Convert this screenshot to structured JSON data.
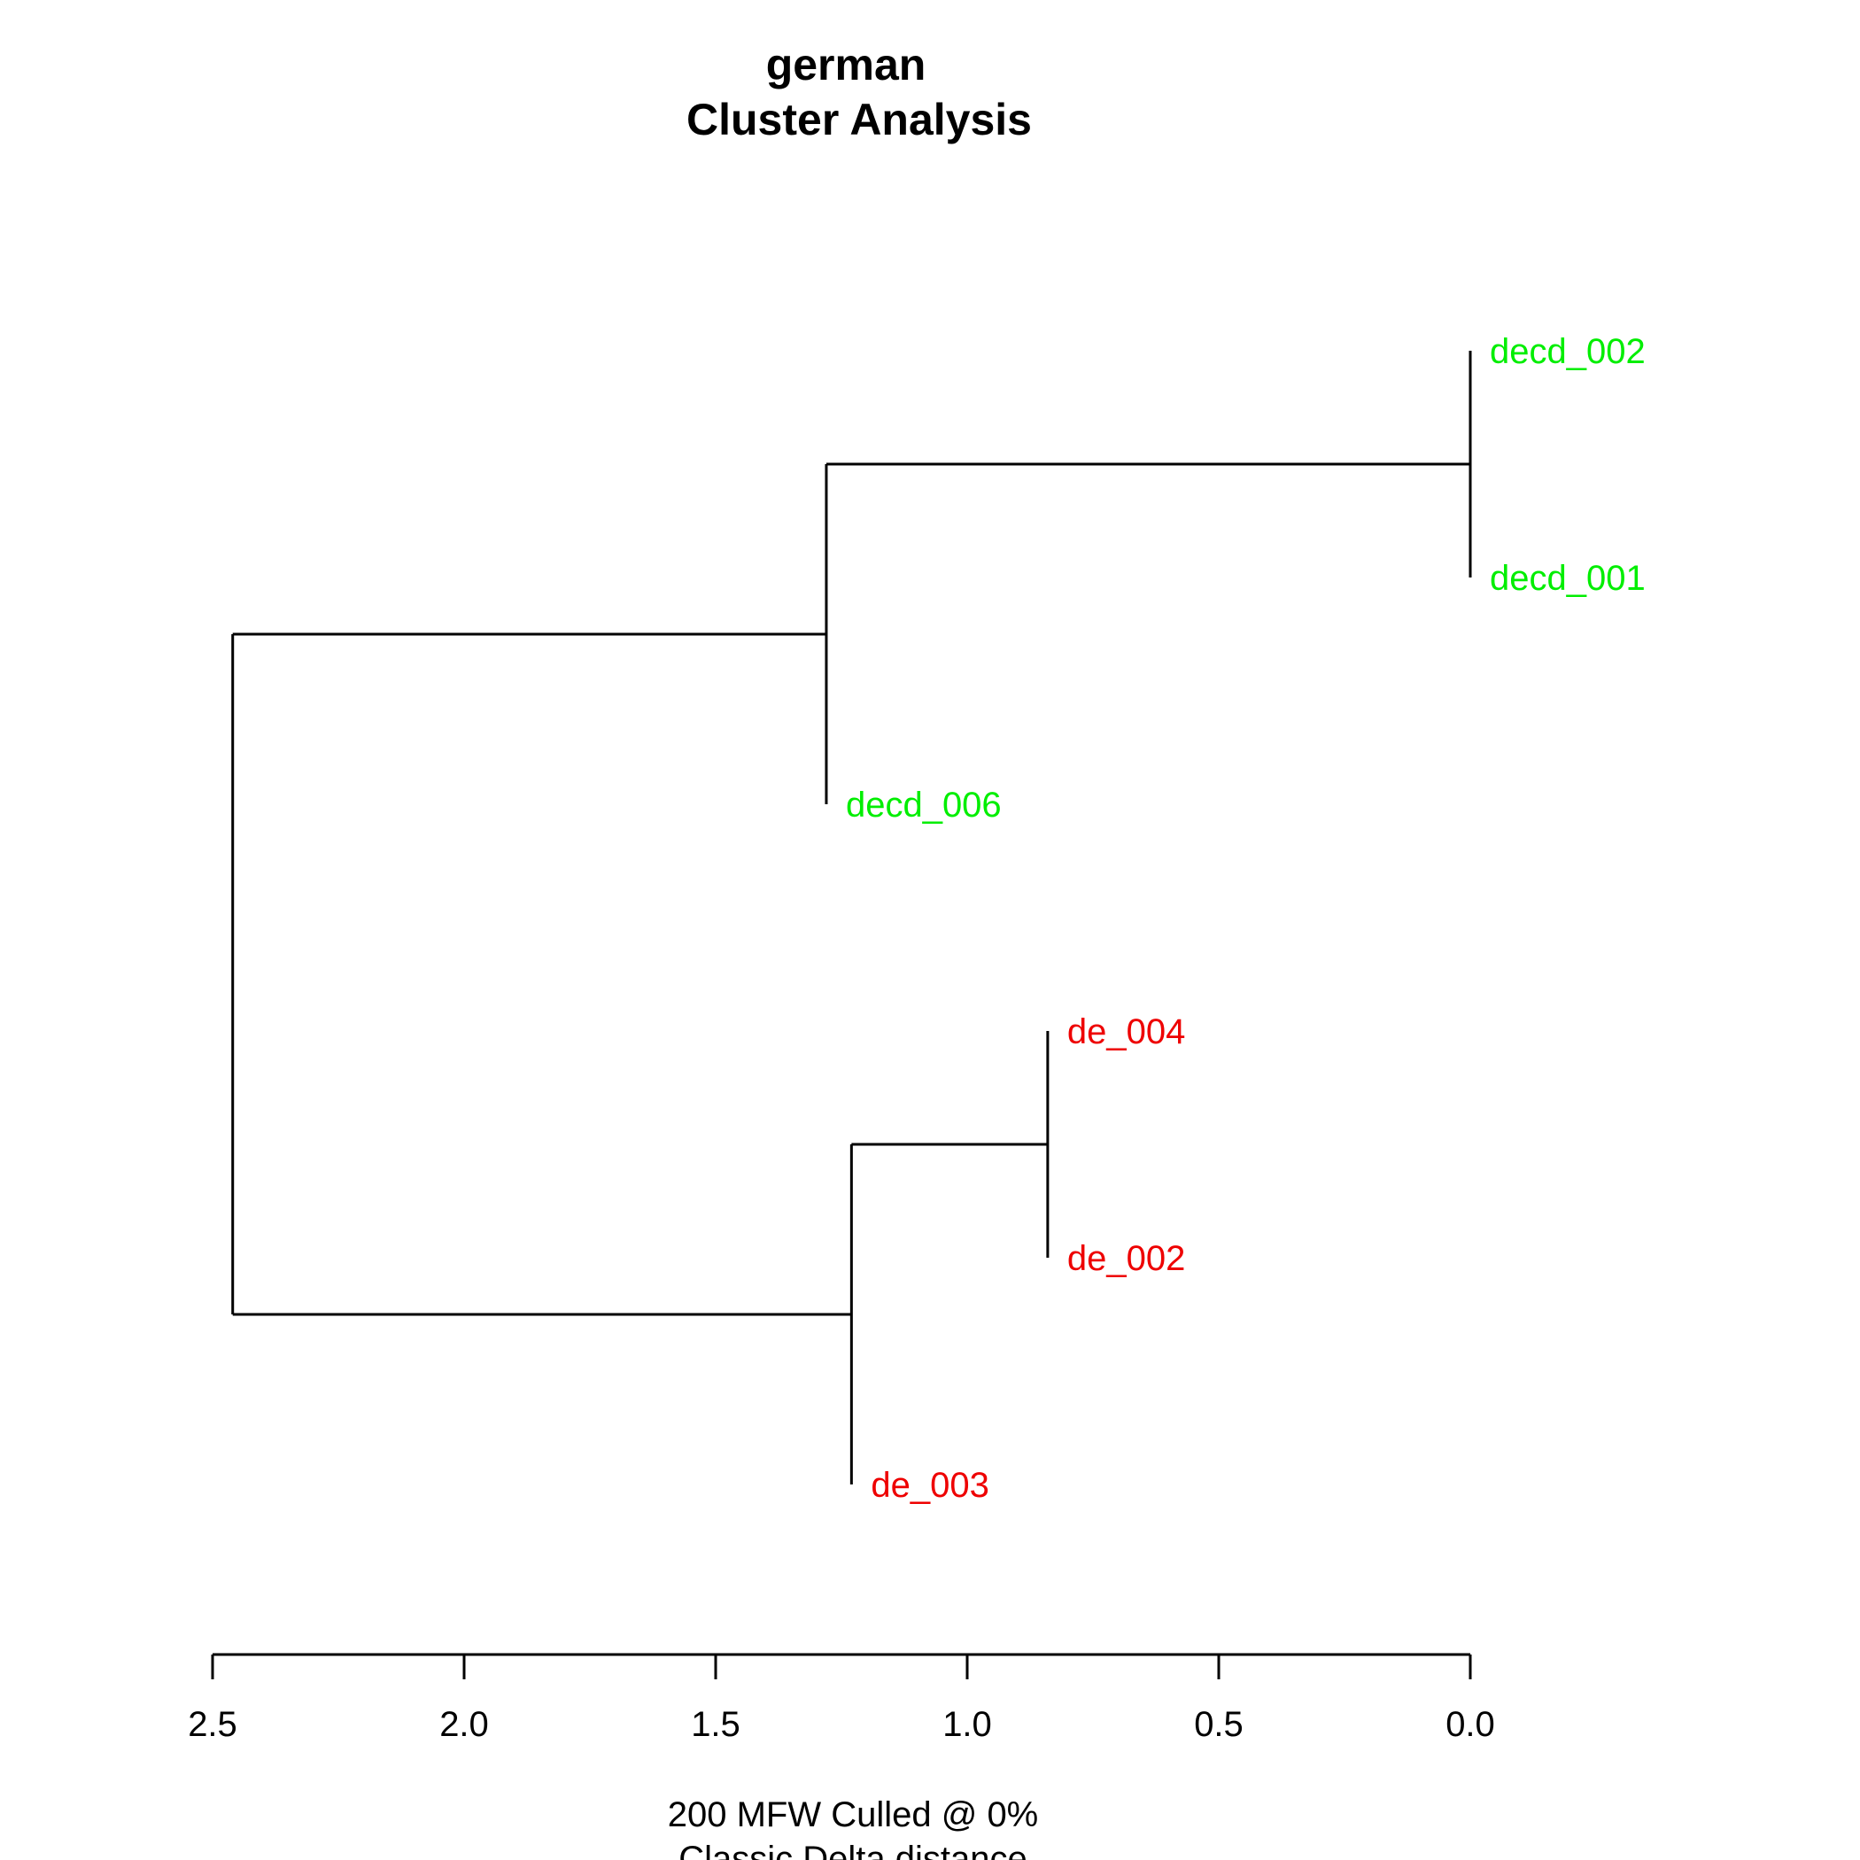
{
  "chart_data": {
    "type": "dendrogram",
    "title": "german",
    "subtitle": "Cluster Analysis",
    "xlabel_line1": "200 MFW  Culled @ 0%",
    "xlabel_line2": "Classic Delta distance",
    "xlim": [
      2.5,
      0.0
    ],
    "ticks": [
      2.5,
      2.0,
      1.5,
      1.0,
      0.5,
      0.0
    ],
    "tick_labels": [
      "2.5",
      "2.0",
      "1.5",
      "1.0",
      "0.5",
      "0.0"
    ],
    "leaves": [
      {
        "label": "decd_002",
        "color": "#00ee00"
      },
      {
        "label": "decd_001",
        "color": "#00ee00"
      },
      {
        "label": "decd_006",
        "color": "#00ee00"
      },
      {
        "label": "de_004",
        "color": "#ee0000"
      },
      {
        "label": "de_002",
        "color": "#ee0000"
      },
      {
        "label": "de_003",
        "color": "#ee0000"
      }
    ],
    "merges": [
      {
        "children": [
          "decd_002",
          "decd_001"
        ],
        "height": 0.0
      },
      {
        "children": [
          "decd_002+decd_001",
          "decd_006"
        ],
        "height": 1.28
      },
      {
        "children": [
          "de_004",
          "de_002"
        ],
        "height": 0.84
      },
      {
        "children": [
          "de_004+de_002",
          "de_003"
        ],
        "height": 1.23
      },
      {
        "children": [
          "decd_group",
          "de_group"
        ],
        "height": 2.46
      }
    ]
  }
}
